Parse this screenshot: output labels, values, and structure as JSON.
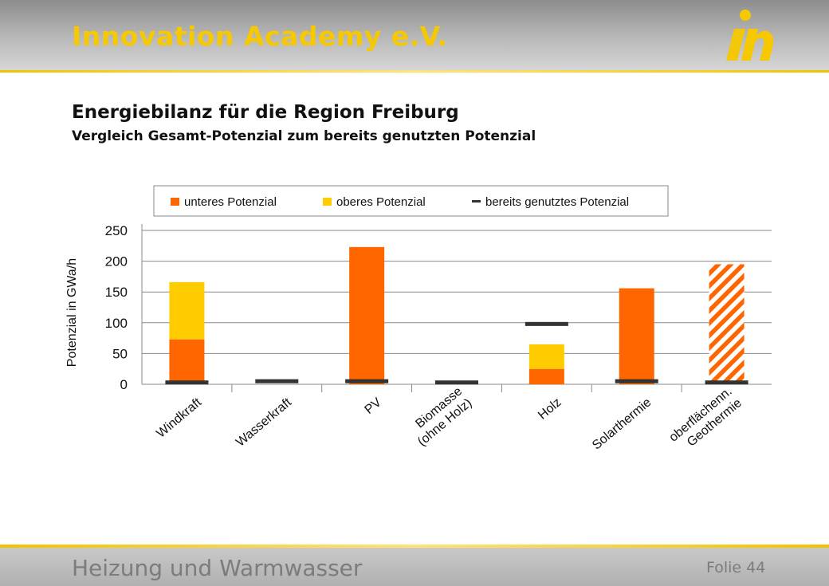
{
  "header": {
    "brand": "Innovation Academy e.V."
  },
  "slide": {
    "title": "Energiebilanz für die Region Freiburg",
    "subtitle": "Vergleich Gesamt-Potenzial zum bereits genutzten Potenzial"
  },
  "footer": {
    "title": "Heizung und Warmwasser",
    "slide_number": "Folie 44"
  },
  "colors": {
    "lower": "#ff6600",
    "upper": "#ffcc00",
    "used": "#333333",
    "accent": "#f6c800"
  },
  "chart_data": {
    "type": "bar",
    "title": "",
    "xlabel": "",
    "ylabel": "Potenzial in GWa/h",
    "ylim": [
      0,
      250
    ],
    "yticks": [
      0,
      50,
      100,
      150,
      200,
      250
    ],
    "grid": true,
    "legend_position": "top",
    "categories": [
      "Windkraft",
      "Wasserkraft",
      "PV",
      "Biomasse\n(ohne Holz)",
      "Holz",
      "Solarthermie",
      "oberflächenn.\nGeothermie"
    ],
    "series": [
      {
        "name": "unteres Potenzial",
        "values": [
          73,
          0,
          223,
          0,
          25,
          156,
          195
        ],
        "pattern": [
          false,
          false,
          false,
          false,
          false,
          false,
          true
        ]
      },
      {
        "name": "oberes Potenzial",
        "values": [
          93,
          0,
          0,
          0,
          40,
          0,
          0
        ]
      },
      {
        "name": "bereits genutztes Potenzial",
        "values": [
          3,
          5,
          5,
          3,
          98,
          5,
          3
        ],
        "marker": "line"
      }
    ]
  }
}
